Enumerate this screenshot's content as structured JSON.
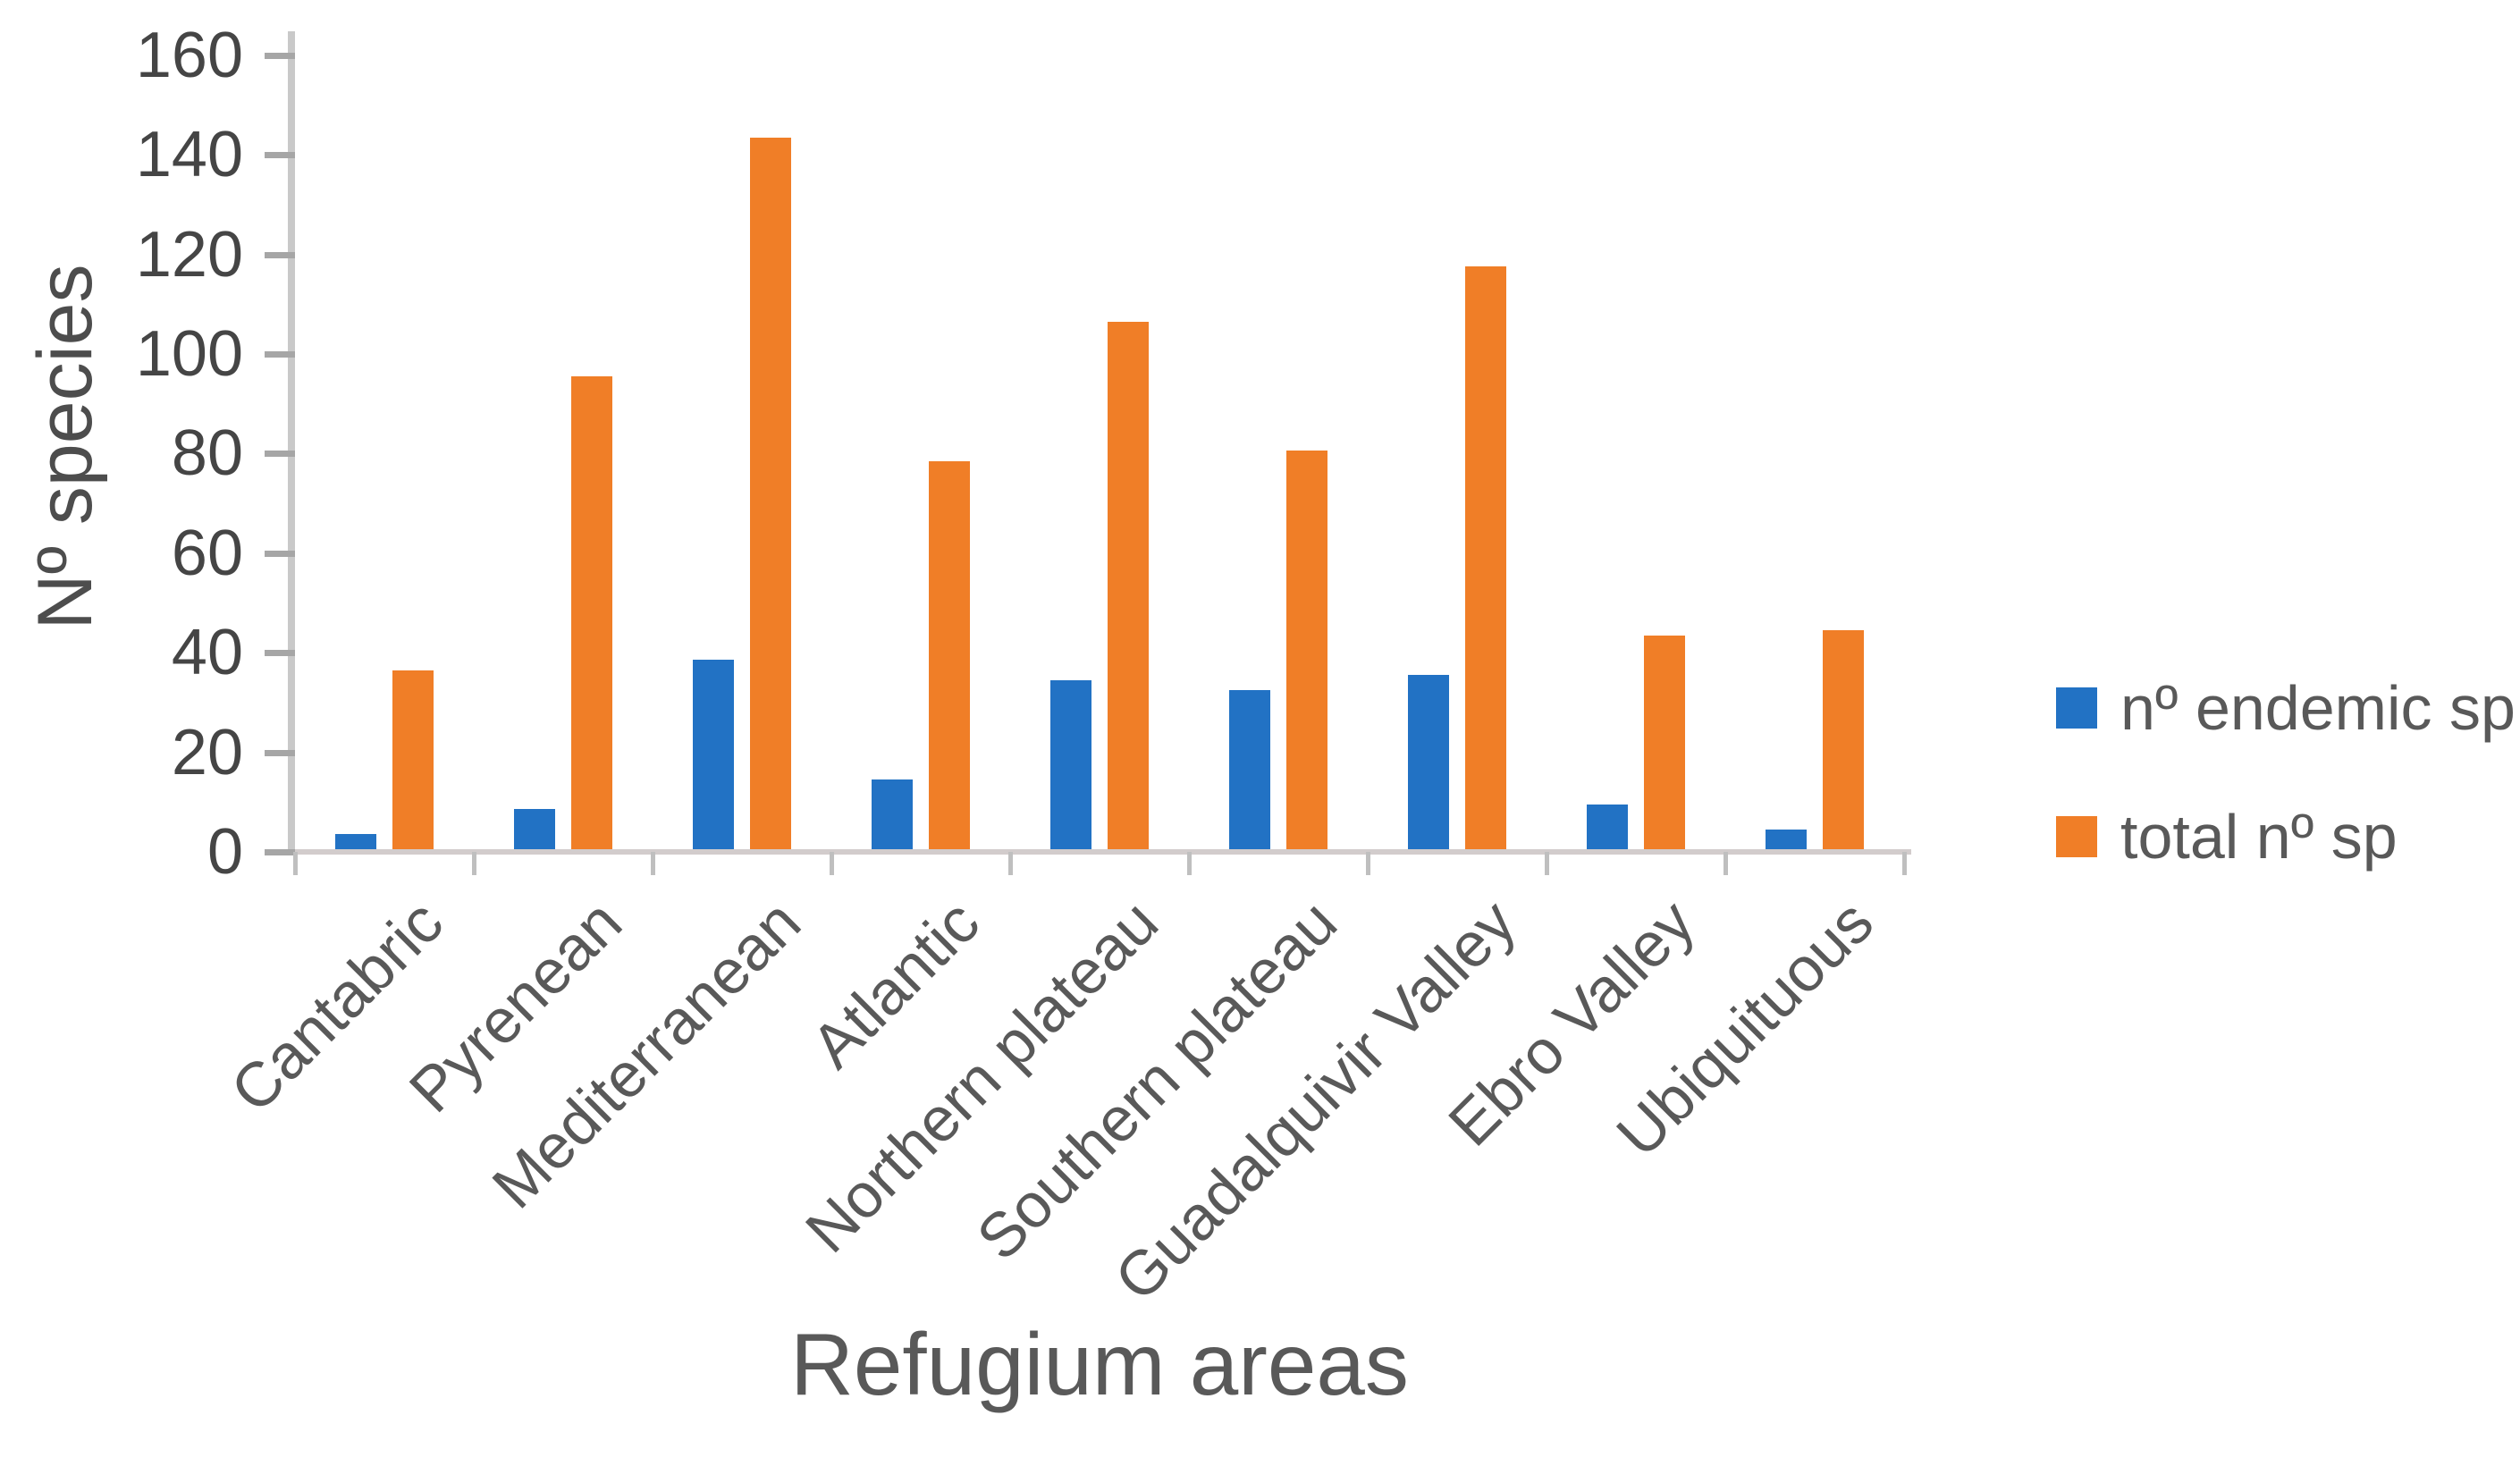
{
  "chart_data": {
    "type": "bar",
    "title": "",
    "categories": [
      "Cantabric",
      "Pyrenean",
      "Mediterranean",
      "Atlantic",
      "Northern plateau",
      "Southern plateau",
      "Guadalquivir Valley",
      "Ebro Valley",
      "Ubiquituous"
    ],
    "series": [
      {
        "name": "nº endemic sp",
        "color": "#2272c4",
        "values": [
          3,
          8,
          38,
          14,
          34,
          32,
          35,
          9,
          4
        ]
      },
      {
        "name": "total nº sp",
        "color": "#f07e27",
        "values": [
          36,
          95,
          143,
          78,
          106,
          80,
          117,
          43,
          44
        ]
      }
    ],
    "xlabel": "Refugium areas",
    "ylabel": "Nº species",
    "ylim": [
      0,
      160
    ],
    "ytick_step": 20,
    "yticks": [
      0,
      20,
      40,
      60,
      80,
      100,
      120,
      140,
      160
    ],
    "grid": false,
    "legend_position": "right"
  },
  "styles": {
    "background": "#ffffff",
    "axis_line_color": "#c9c9c9",
    "baseline_color": "#d2cccc",
    "tick_mark_color": "#a6a6a6",
    "tick_label_color": "#454545",
    "category_label_color": "#595959",
    "axis_title_color": "#595959"
  }
}
